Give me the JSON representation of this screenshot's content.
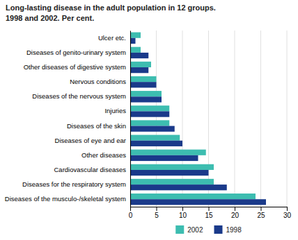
{
  "chart_data": {
    "type": "bar",
    "orientation": "horizontal",
    "title": "Long-lasting disease in the adult population in 12 groups.",
    "subtitle": "1998 and 2002. Per cent.",
    "categories": [
      "Diseases of the musculo-/skeletal system",
      "Diseases for the respiratory system",
      "Cardiovascular diseases",
      "Other diseases",
      "Diseases of eye and ear",
      "Diseases of the skin",
      "Injuries",
      "Diseases of the nervous system",
      "Nervous conditions",
      "Other diseases of digestive system",
      "Diseases of genito-urinary system",
      "Ulcer etc."
    ],
    "series": [
      {
        "name": "2002",
        "color": "#3dbdb0",
        "values": [
          24.0,
          16.0,
          16.0,
          14.5,
          9.5,
          7.5,
          7.5,
          6.0,
          5.0,
          4.0,
          2.0,
          2.0
        ]
      },
      {
        "name": "1998",
        "color": "#1a3a8a",
        "values": [
          26.0,
          18.5,
          15.0,
          13.0,
          10.0,
          8.5,
          7.5,
          6.0,
          5.0,
          3.5,
          3.5,
          1.0
        ]
      }
    ],
    "xlim": [
      0,
      30
    ],
    "xticks": [
      0,
      5,
      10,
      15,
      20,
      25,
      30
    ],
    "grid": true,
    "legend": "bottom"
  }
}
